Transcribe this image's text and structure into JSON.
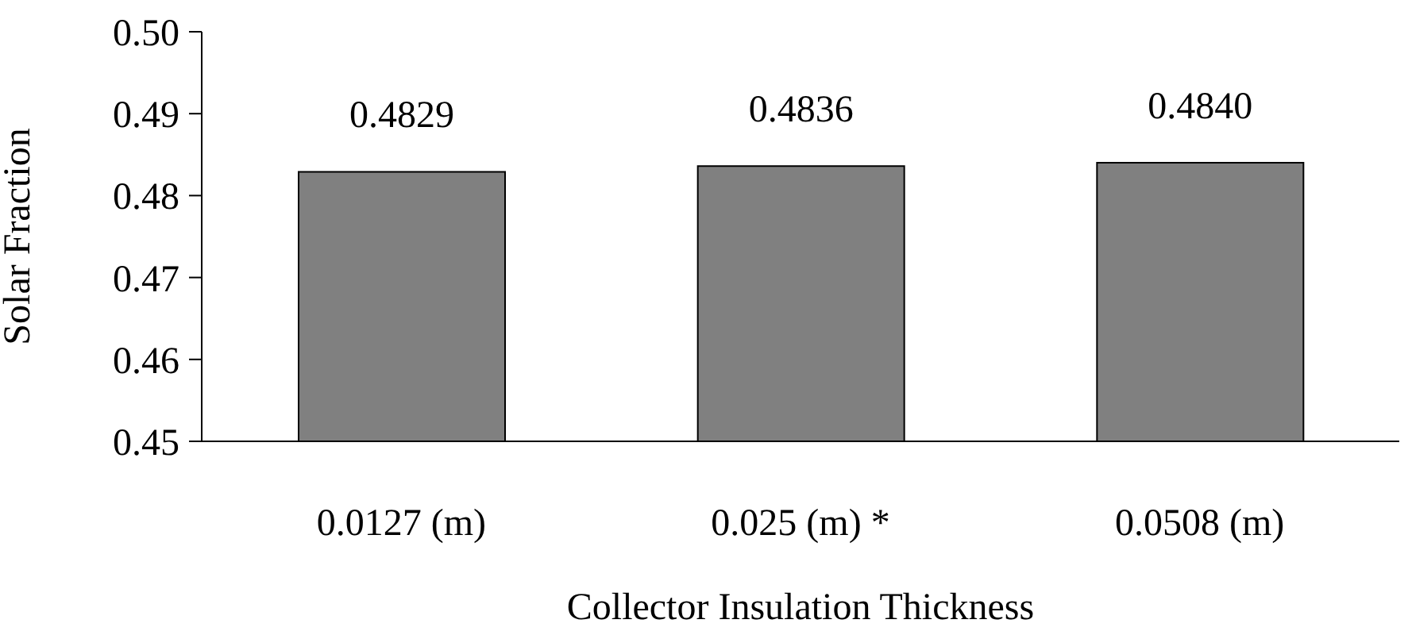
{
  "chart_data": {
    "type": "bar",
    "xlabel": "Collector Insulation Thickness",
    "ylabel": "Solar Fraction",
    "categories": [
      "0.0127 (m)",
      "0.025 (m) *",
      "0.0508 (m)"
    ],
    "values": [
      0.4829,
      0.4836,
      0.484
    ],
    "value_labels": [
      "0.4829",
      "0.4836",
      "0.4840"
    ],
    "color": "#808080",
    "ylim": [
      0.45,
      0.5
    ],
    "yticks": [
      {
        "value": 0.45,
        "label": "0.45"
      },
      {
        "value": 0.46,
        "label": "0.46"
      },
      {
        "value": 0.47,
        "label": "0.47"
      },
      {
        "value": 0.48,
        "label": "0.48"
      },
      {
        "value": 0.49,
        "label": "0.49"
      },
      {
        "value": 0.5,
        "label": "0.50"
      }
    ],
    "grid": false,
    "legend": false
  }
}
